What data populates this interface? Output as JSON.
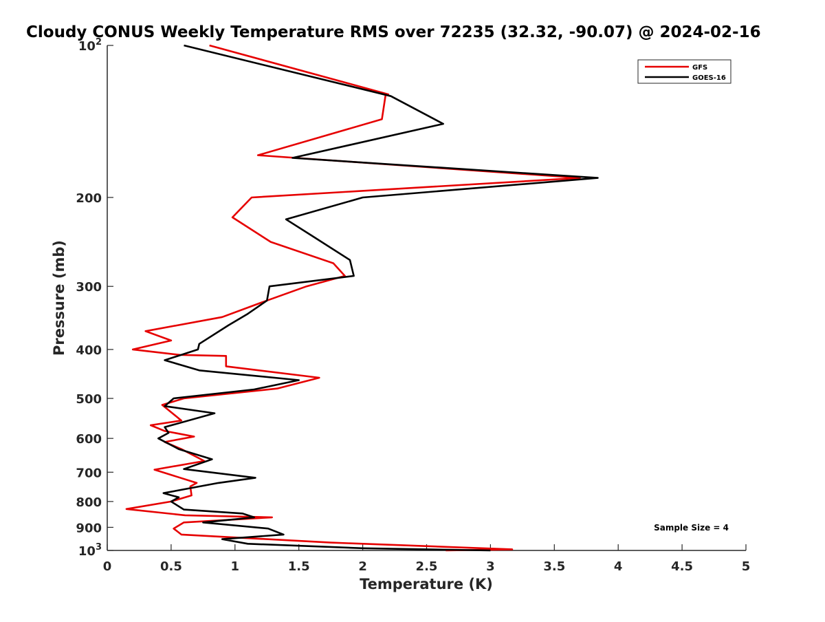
{
  "chart_data": {
    "type": "line",
    "title": "Cloudy CONUS Weekly Temperature RMS over 72235 (32.32, -90.07) @ 2024-02-16",
    "xlabel": "Temperature (K)",
    "ylabel": "Pressure (mb)",
    "xlim": [
      0,
      5
    ],
    "ylim": [
      100,
      1000
    ],
    "y_scale": "log",
    "y_reversed": true,
    "grid": false,
    "legend_position": "top-right",
    "x_ticks": [
      0,
      0.5,
      1,
      1.5,
      2,
      2.5,
      3,
      3.5,
      4,
      4.5,
      5
    ],
    "x_tick_labels": [
      "0",
      "0.5",
      "1",
      "1.5",
      "2",
      "2.5",
      "3",
      "3.5",
      "4",
      "4.5",
      "5"
    ],
    "y_ticks": [
      {
        "value": 100,
        "base": "10",
        "exp": "2",
        "text": ""
      },
      {
        "value": 200,
        "base": "",
        "exp": "",
        "text": "200"
      },
      {
        "value": 300,
        "base": "",
        "exp": "",
        "text": "300"
      },
      {
        "value": 400,
        "base": "",
        "exp": "",
        "text": "400"
      },
      {
        "value": 500,
        "base": "",
        "exp": "",
        "text": "500"
      },
      {
        "value": 600,
        "base": "",
        "exp": "",
        "text": "600"
      },
      {
        "value": 700,
        "base": "",
        "exp": "",
        "text": "700"
      },
      {
        "value": 800,
        "base": "",
        "exp": "",
        "text": "800"
      },
      {
        "value": 900,
        "base": "",
        "exp": "",
        "text": "900"
      },
      {
        "value": 1000,
        "base": "10",
        "exp": "3",
        "text": ""
      }
    ],
    "annotation": "Sample Size = 4",
    "series": [
      {
        "name": "GFS",
        "color": "#e60000",
        "points": [
          [
            0.8,
            100
          ],
          [
            2.2,
            125
          ],
          [
            2.18,
            125
          ],
          [
            2.15,
            140
          ],
          [
            1.18,
            165
          ],
          [
            3.7,
            183
          ],
          [
            1.13,
            200
          ],
          [
            0.98,
            219
          ],
          [
            1.28,
            245
          ],
          [
            1.77,
            270
          ],
          [
            1.86,
            286
          ],
          [
            1.56,
            300
          ],
          [
            1.22,
            322
          ],
          [
            0.9,
            345
          ],
          [
            0.3,
            368
          ],
          [
            0.5,
            384
          ],
          [
            0.2,
            400
          ],
          [
            0.57,
            410
          ],
          [
            0.93,
            412
          ],
          [
            0.93,
            432
          ],
          [
            1.66,
            455
          ],
          [
            1.33,
            478
          ],
          [
            0.6,
            500
          ],
          [
            0.43,
            515
          ],
          [
            0.58,
            553
          ],
          [
            0.34,
            565
          ],
          [
            0.45,
            580
          ],
          [
            0.68,
            595
          ],
          [
            0.45,
            610
          ],
          [
            0.58,
            630
          ],
          [
            0.76,
            665
          ],
          [
            0.37,
            692
          ],
          [
            0.7,
            735
          ],
          [
            0.65,
            747
          ],
          [
            0.66,
            778
          ],
          [
            0.5,
            800
          ],
          [
            0.15,
            828
          ],
          [
            0.61,
            852
          ],
          [
            1.29,
            860
          ],
          [
            0.6,
            880
          ],
          [
            0.52,
            905
          ],
          [
            0.58,
            930
          ],
          [
            1.75,
            965
          ],
          [
            3.17,
            995
          ],
          [
            2.65,
            1000
          ]
        ]
      },
      {
        "name": "GOES-16",
        "color": "#000000",
        "points": [
          [
            0.6,
            100
          ],
          [
            2.22,
            126
          ],
          [
            2.63,
            143
          ],
          [
            1.45,
            167
          ],
          [
            3.84,
            183
          ],
          [
            2.0,
            200
          ],
          [
            1.4,
            221
          ],
          [
            1.6,
            238
          ],
          [
            1.9,
            266
          ],
          [
            1.93,
            286
          ],
          [
            1.27,
            300
          ],
          [
            1.25,
            320
          ],
          [
            1.1,
            340
          ],
          [
            0.95,
            358
          ],
          [
            0.72,
            390
          ],
          [
            0.71,
            400
          ],
          [
            0.45,
            420
          ],
          [
            0.72,
            440
          ],
          [
            1.5,
            460
          ],
          [
            1.15,
            480
          ],
          [
            0.52,
            500
          ],
          [
            0.45,
            518
          ],
          [
            0.84,
            535
          ],
          [
            0.45,
            570
          ],
          [
            0.48,
            585
          ],
          [
            0.4,
            600
          ],
          [
            0.56,
            630
          ],
          [
            0.82,
            660
          ],
          [
            0.6,
            690
          ],
          [
            1.16,
            718
          ],
          [
            0.87,
            735
          ],
          [
            0.44,
            770
          ],
          [
            0.56,
            785
          ],
          [
            0.5,
            800
          ],
          [
            0.6,
            830
          ],
          [
            1.06,
            845
          ],
          [
            1.15,
            860
          ],
          [
            0.75,
            880
          ],
          [
            1.26,
            905
          ],
          [
            1.38,
            930
          ],
          [
            0.9,
            950
          ],
          [
            1.1,
            970
          ],
          [
            2.0,
            990
          ],
          [
            3.0,
            1000
          ]
        ]
      }
    ]
  }
}
